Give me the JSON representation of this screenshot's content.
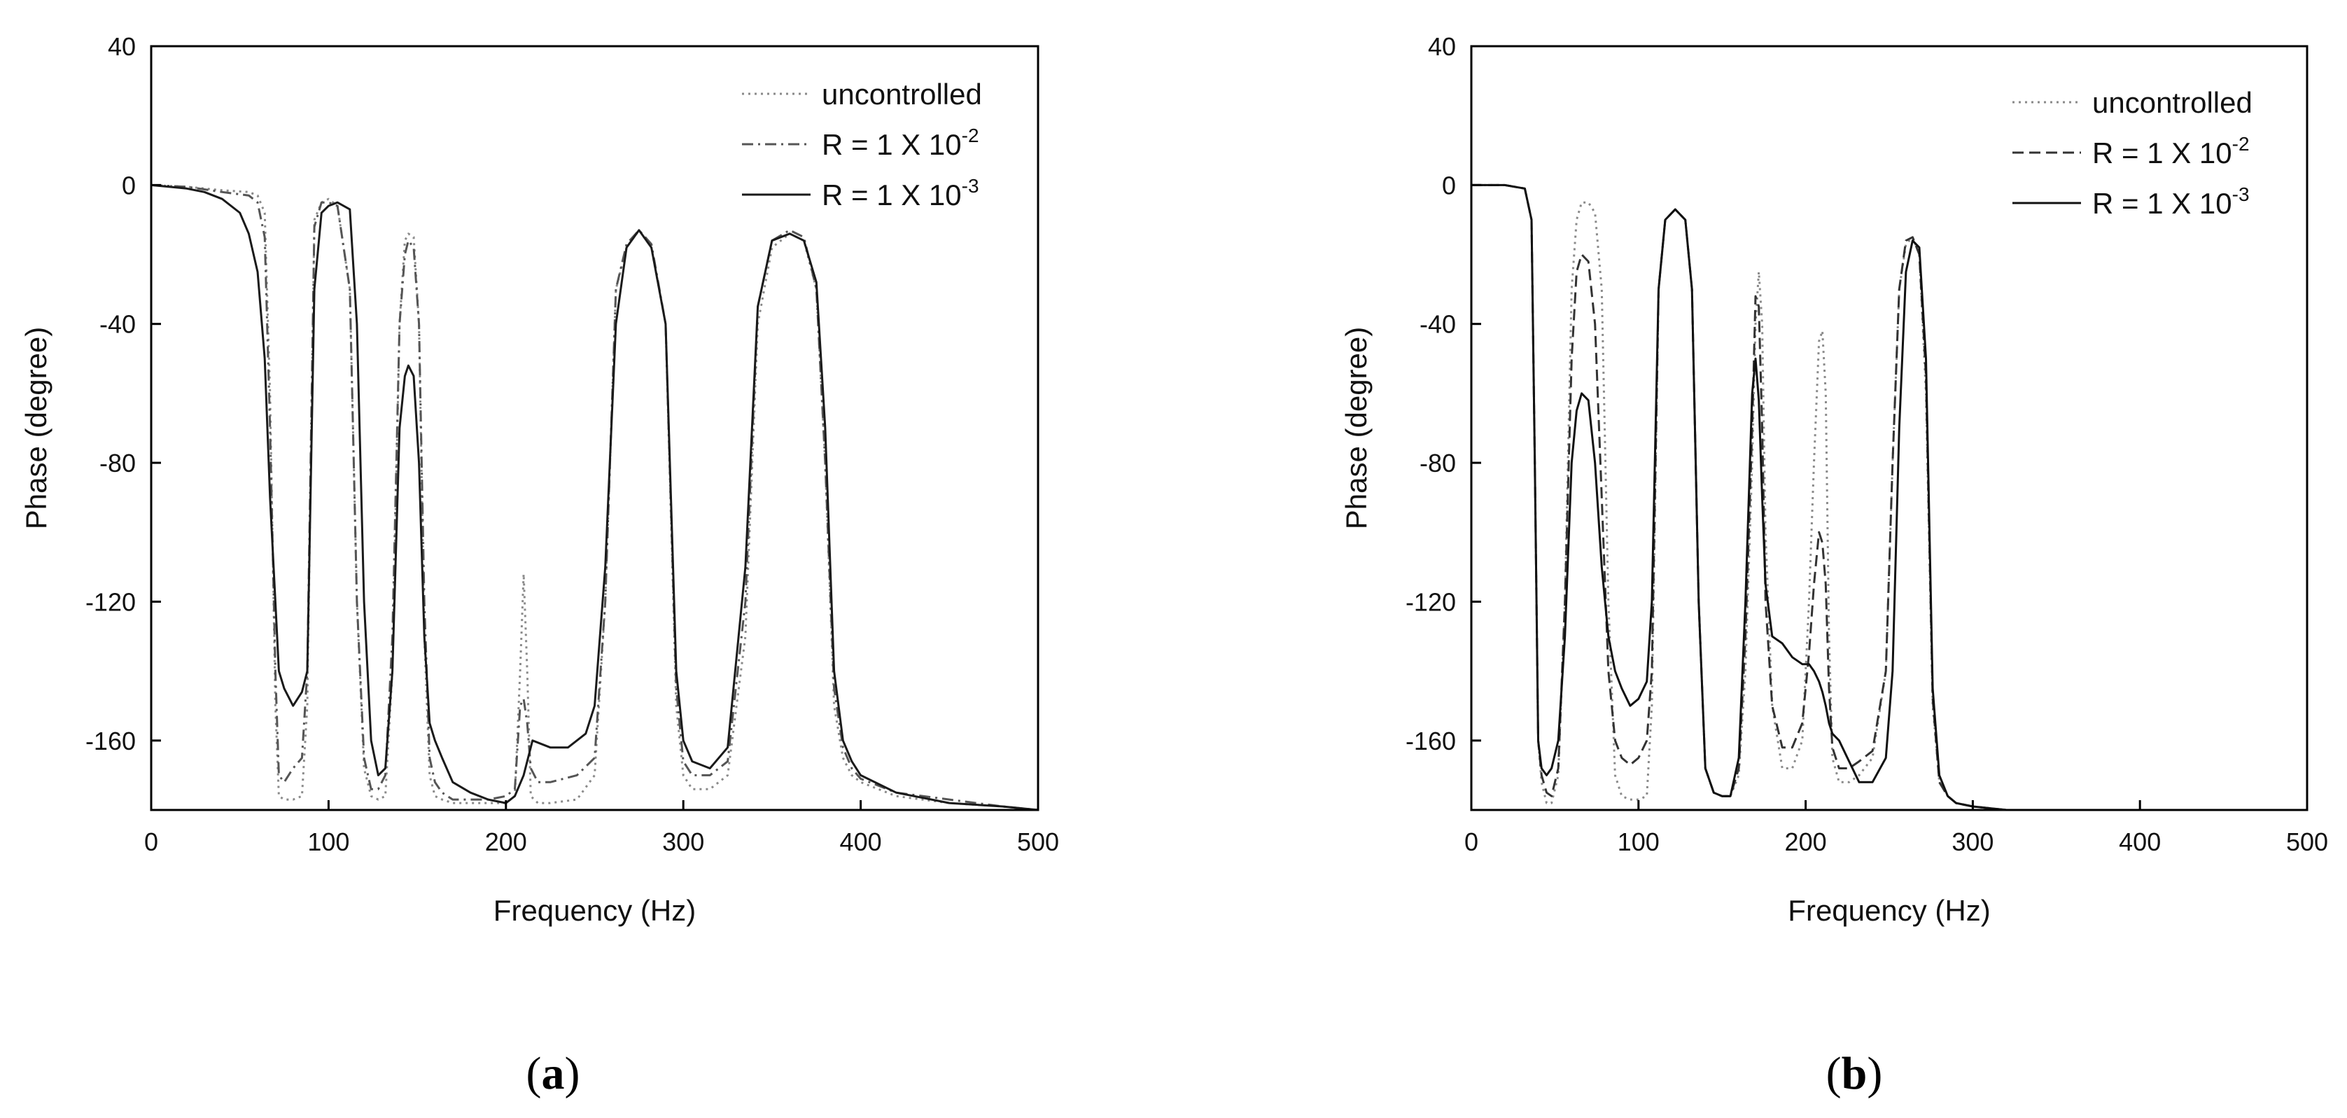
{
  "chart_data": [
    {
      "type": "line",
      "caption": "(a)",
      "xlabel": "Frequency (Hz)",
      "ylabel": "Phase (degree)",
      "xlim": [
        0,
        500
      ],
      "ylim": [
        -180,
        40
      ],
      "xticks": [
        0,
        100,
        200,
        300,
        400,
        500
      ],
      "yticks": [
        40,
        0,
        -40,
        -80,
        -120,
        -160
      ],
      "legend_position": "top-right",
      "series": [
        {
          "name": "uncontrolled",
          "style": "dotted",
          "color": "#8a8a8a",
          "legend_base": "uncontrolled",
          "legend_sup": "",
          "x": [
            0,
            20,
            40,
            55,
            60,
            64,
            67,
            70,
            72,
            75,
            80,
            85,
            88,
            92,
            96,
            100,
            105,
            112,
            116,
            120,
            124,
            128,
            132,
            136,
            140,
            143,
            145,
            148,
            151,
            154,
            157,
            160,
            164,
            170,
            180,
            190,
            200,
            205,
            208,
            210,
            212,
            214,
            218,
            225,
            240,
            250,
            256,
            262,
            268,
            275,
            282,
            290,
            296,
            300,
            305,
            315,
            325,
            335,
            342,
            350,
            360,
            368,
            375,
            380,
            385,
            390,
            395,
            400,
            420,
            450,
            480,
            500
          ],
          "y": [
            0,
            -0.5,
            -1.5,
            -2,
            -3,
            -8,
            -60,
            -150,
            -176,
            -177,
            -177,
            -176,
            -150,
            -10,
            -5,
            -4,
            -6,
            -30,
            -120,
            -168,
            -176,
            -177,
            -176,
            -140,
            -40,
            -16,
            -14,
            -15,
            -40,
            -130,
            -170,
            -176,
            -177,
            -178,
            -178,
            -178,
            -178,
            -176,
            -140,
            -112,
            -140,
            -176,
            -178,
            -178,
            -177,
            -170,
            -120,
            -30,
            -18,
            -13,
            -18,
            -40,
            -150,
            -170,
            -174,
            -174,
            -170,
            -130,
            -40,
            -18,
            -14,
            -16,
            -30,
            -80,
            -150,
            -165,
            -170,
            -172,
            -176,
            -178,
            -179,
            -180
          ]
        },
        {
          "name": "R = 1 X 10^-2",
          "style": "dashdot",
          "color": "#555555",
          "legend_base": "R = 1 X 10",
          "legend_sup": "-2",
          "x": [
            0,
            20,
            40,
            55,
            60,
            64,
            67,
            70,
            72,
            75,
            80,
            85,
            88,
            92,
            96,
            100,
            105,
            112,
            116,
            120,
            124,
            128,
            132,
            136,
            140,
            143,
            145,
            148,
            151,
            154,
            157,
            160,
            164,
            170,
            180,
            190,
            200,
            205,
            208,
            210,
            212,
            214,
            218,
            225,
            240,
            250,
            256,
            262,
            268,
            275,
            282,
            290,
            296,
            300,
            305,
            315,
            325,
            335,
            342,
            350,
            360,
            368,
            375,
            380,
            385,
            390,
            395,
            400,
            420,
            450,
            480,
            500
          ],
          "y": [
            0,
            -0.5,
            -2,
            -3,
            -5,
            -15,
            -70,
            -140,
            -170,
            -172,
            -168,
            -165,
            -140,
            -12,
            -5,
            -5,
            -6,
            -30,
            -120,
            -165,
            -174,
            -174,
            -170,
            -130,
            -40,
            -20,
            -16,
            -18,
            -40,
            -120,
            -165,
            -172,
            -175,
            -177,
            -177,
            -177,
            -176,
            -174,
            -150,
            -148,
            -155,
            -168,
            -172,
            -172,
            -170,
            -165,
            -120,
            -30,
            -17,
            -13,
            -17,
            -40,
            -145,
            -166,
            -170,
            -170,
            -166,
            -120,
            -35,
            -16,
            -13,
            -15,
            -30,
            -80,
            -145,
            -162,
            -168,
            -171,
            -175,
            -177,
            -179,
            -180
          ]
        },
        {
          "name": "R = 1 X 10^-3",
          "style": "solid",
          "color": "#1a1a1a",
          "legend_base": "R = 1 X 10",
          "legend_sup": "-3",
          "x": [
            0,
            10,
            20,
            30,
            40,
            50,
            55,
            60,
            64,
            67,
            70,
            72,
            75,
            80,
            85,
            88,
            92,
            96,
            100,
            105,
            112,
            116,
            120,
            124,
            128,
            132,
            136,
            140,
            143,
            145,
            148,
            151,
            154,
            157,
            160,
            164,
            170,
            180,
            190,
            200,
            205,
            210,
            215,
            225,
            235,
            245,
            250,
            256,
            262,
            268,
            275,
            282,
            290,
            296,
            300,
            305,
            315,
            325,
            335,
            342,
            350,
            360,
            368,
            375,
            380,
            385,
            390,
            395,
            400,
            420,
            450,
            480,
            500
          ],
          "y": [
            0,
            -0.5,
            -1,
            -2,
            -4,
            -8,
            -14,
            -25,
            -50,
            -90,
            -120,
            -140,
            -145,
            -150,
            -146,
            -140,
            -30,
            -8,
            -6,
            -5,
            -7,
            -40,
            -120,
            -160,
            -170,
            -168,
            -140,
            -70,
            -55,
            -52,
            -55,
            -80,
            -130,
            -155,
            -160,
            -165,
            -172,
            -175,
            -177,
            -178,
            -176,
            -170,
            -160,
            -162,
            -162,
            -158,
            -150,
            -110,
            -40,
            -18,
            -13,
            -18,
            -40,
            -140,
            -160,
            -166,
            -168,
            -162,
            -110,
            -35,
            -16,
            -14,
            -16,
            -28,
            -70,
            -140,
            -160,
            -166,
            -170,
            -175,
            -178,
            -179,
            -180
          ]
        }
      ]
    },
    {
      "type": "line",
      "caption": "(b)",
      "xlabel": "Frequency (Hz)",
      "ylabel": "Phase (degree)",
      "xlim": [
        0,
        500
      ],
      "ylim": [
        -180,
        40
      ],
      "xticks": [
        0,
        100,
        200,
        300,
        400,
        500
      ],
      "yticks": [
        40,
        0,
        -40,
        -80,
        -120,
        -160
      ],
      "legend_position": "top-right",
      "series": [
        {
          "name": "uncontrolled",
          "style": "dotted",
          "color": "#8a8a8a",
          "legend_base": "uncontrolled",
          "legend_sup": "",
          "x": [
            0,
            20,
            32,
            36,
            38,
            40,
            42,
            45,
            48,
            52,
            56,
            60,
            63,
            66,
            70,
            74,
            78,
            82,
            86,
            90,
            95,
            100,
            105,
            108,
            112,
            116,
            122,
            128,
            132,
            136,
            140,
            145,
            150,
            155,
            160,
            164,
            168,
            170,
            172,
            174,
            176,
            180,
            186,
            192,
            198,
            202,
            205,
            208,
            210,
            212,
            214,
            216,
            220,
            226,
            232,
            240,
            248,
            252,
            256,
            260,
            264,
            268,
            272,
            276,
            280,
            285,
            290,
            300,
            320,
            340,
            400,
            450,
            500
          ],
          "y": [
            0,
            0,
            -1,
            -10,
            -80,
            -160,
            -172,
            -178,
            -178,
            -170,
            -120,
            -30,
            -10,
            -5,
            -5,
            -8,
            -30,
            -120,
            -170,
            -176,
            -177,
            -177,
            -176,
            -150,
            -30,
            -10,
            -7,
            -10,
            -30,
            -120,
            -168,
            -175,
            -176,
            -176,
            -170,
            -140,
            -80,
            -40,
            -25,
            -40,
            -100,
            -150,
            -168,
            -168,
            -160,
            -120,
            -80,
            -45,
            -42,
            -60,
            -130,
            -165,
            -172,
            -172,
            -170,
            -165,
            -140,
            -80,
            -30,
            -17,
            -15,
            -20,
            -60,
            -150,
            -172,
            -176,
            -178,
            -179,
            -180,
            -180,
            -180,
            -180,
            -180
          ]
        },
        {
          "name": "R = 1 X 10^-2",
          "style": "dashed",
          "color": "#333333",
          "legend_base": "R = 1 X 10",
          "legend_sup": "-2",
          "x": [
            0,
            20,
            32,
            36,
            38,
            40,
            42,
            45,
            48,
            52,
            56,
            60,
            63,
            66,
            70,
            74,
            78,
            82,
            86,
            90,
            95,
            100,
            105,
            108,
            112,
            116,
            122,
            128,
            132,
            136,
            140,
            145,
            150,
            155,
            160,
            164,
            168,
            170,
            172,
            174,
            176,
            180,
            186,
            192,
            198,
            202,
            205,
            208,
            210,
            212,
            214,
            216,
            220,
            226,
            232,
            240,
            248,
            252,
            256,
            260,
            264,
            268,
            272,
            276,
            280,
            285,
            290,
            300,
            320,
            340,
            400,
            450,
            500
          ],
          "y": [
            0,
            0,
            -1,
            -10,
            -80,
            -160,
            -170,
            -175,
            -176,
            -168,
            -120,
            -50,
            -25,
            -20,
            -22,
            -40,
            -90,
            -140,
            -160,
            -165,
            -167,
            -165,
            -160,
            -140,
            -30,
            -10,
            -7,
            -10,
            -30,
            -120,
            -168,
            -175,
            -176,
            -176,
            -168,
            -130,
            -70,
            -32,
            -35,
            -70,
            -120,
            -150,
            -162,
            -162,
            -155,
            -135,
            -115,
            -100,
            -103,
            -115,
            -145,
            -162,
            -168,
            -168,
            -166,
            -163,
            -140,
            -80,
            -30,
            -16,
            -15,
            -20,
            -55,
            -148,
            -172,
            -176,
            -178,
            -179,
            -180,
            -180,
            -180,
            -180,
            -180
          ]
        },
        {
          "name": "R = 1 X 10^-3",
          "style": "solid",
          "color": "#111111",
          "legend_base": "R = 1 X 10",
          "legend_sup": "-3",
          "x": [
            0,
            20,
            32,
            36,
            38,
            40,
            42,
            45,
            48,
            52,
            56,
            60,
            63,
            66,
            70,
            74,
            78,
            82,
            86,
            90,
            95,
            100,
            105,
            108,
            112,
            116,
            122,
            128,
            132,
            136,
            140,
            145,
            150,
            155,
            160,
            164,
            168,
            170,
            172,
            174,
            176,
            180,
            186,
            192,
            198,
            202,
            205,
            208,
            210,
            212,
            214,
            216,
            220,
            226,
            232,
            240,
            248,
            252,
            256,
            260,
            264,
            268,
            272,
            276,
            280,
            285,
            290,
            300,
            320,
            340,
            400,
            450,
            500
          ],
          "y": [
            0,
            0,
            -1,
            -10,
            -80,
            -160,
            -168,
            -170,
            -168,
            -160,
            -130,
            -80,
            -65,
            -60,
            -62,
            -80,
            -110,
            -130,
            -140,
            -145,
            -150,
            -148,
            -143,
            -120,
            -30,
            -10,
            -7,
            -10,
            -30,
            -120,
            -168,
            -175,
            -176,
            -176,
            -165,
            -120,
            -60,
            -50,
            -62,
            -90,
            -115,
            -130,
            -132,
            -136,
            -138,
            -138,
            -140,
            -143,
            -146,
            -150,
            -155,
            -158,
            -160,
            -166,
            -172,
            -172,
            -165,
            -140,
            -70,
            -25,
            -16,
            -18,
            -50,
            -145,
            -170,
            -176,
            -178,
            -179,
            -180,
            -180,
            -180,
            -180,
            -180
          ]
        }
      ]
    }
  ]
}
